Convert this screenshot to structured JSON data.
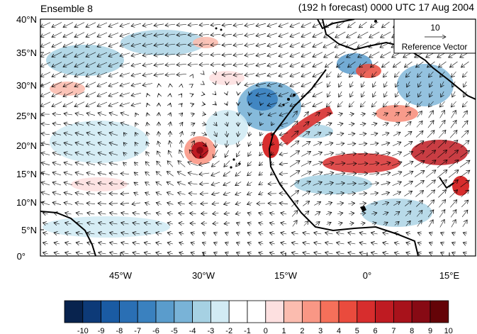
{
  "header": {
    "left_title": "Ensemble 8",
    "right_title": "(192 h forecast) 0000 UTC 17 Aug 2004"
  },
  "map": {
    "lon_range": [
      -68,
      20
    ],
    "lat_range": [
      0,
      40
    ],
    "y_ticks": [
      "40°N",
      "35°N",
      "30°N",
      "25°N",
      "20°N",
      "15°N",
      "10°N",
      "5°N",
      "0°"
    ],
    "x_ticks": [
      "45°W",
      "30°W",
      "15°W",
      "0°",
      "15°E"
    ],
    "coast_color": "#000000",
    "land_fill": "#cccccc"
  },
  "reference_vector": {
    "magnitude": "10",
    "label": "Reference Vector"
  },
  "colorbar": {
    "labels": [
      "-10",
      "-9",
      "-8",
      "-7",
      "-6",
      "-5",
      "-4",
      "-3",
      "-2",
      "-1",
      "0",
      "1",
      "2",
      "3",
      "4",
      "5",
      "6",
      "7",
      "8",
      "9",
      "10"
    ],
    "colors": [
      "#08234e",
      "#0d3a78",
      "#1a5ba3",
      "#2a6fb4",
      "#3a81bf",
      "#5a9ccc",
      "#79b3d7",
      "#a6d1e3",
      "#d2ebf4",
      "#ffffff",
      "#ffffff",
      "#fde0e0",
      "#fbbcaf",
      "#f99785",
      "#f5705a",
      "#ea4b3d",
      "#d72d2d",
      "#bf1b22",
      "#a8121b",
      "#870a14",
      "#640307"
    ]
  }
}
